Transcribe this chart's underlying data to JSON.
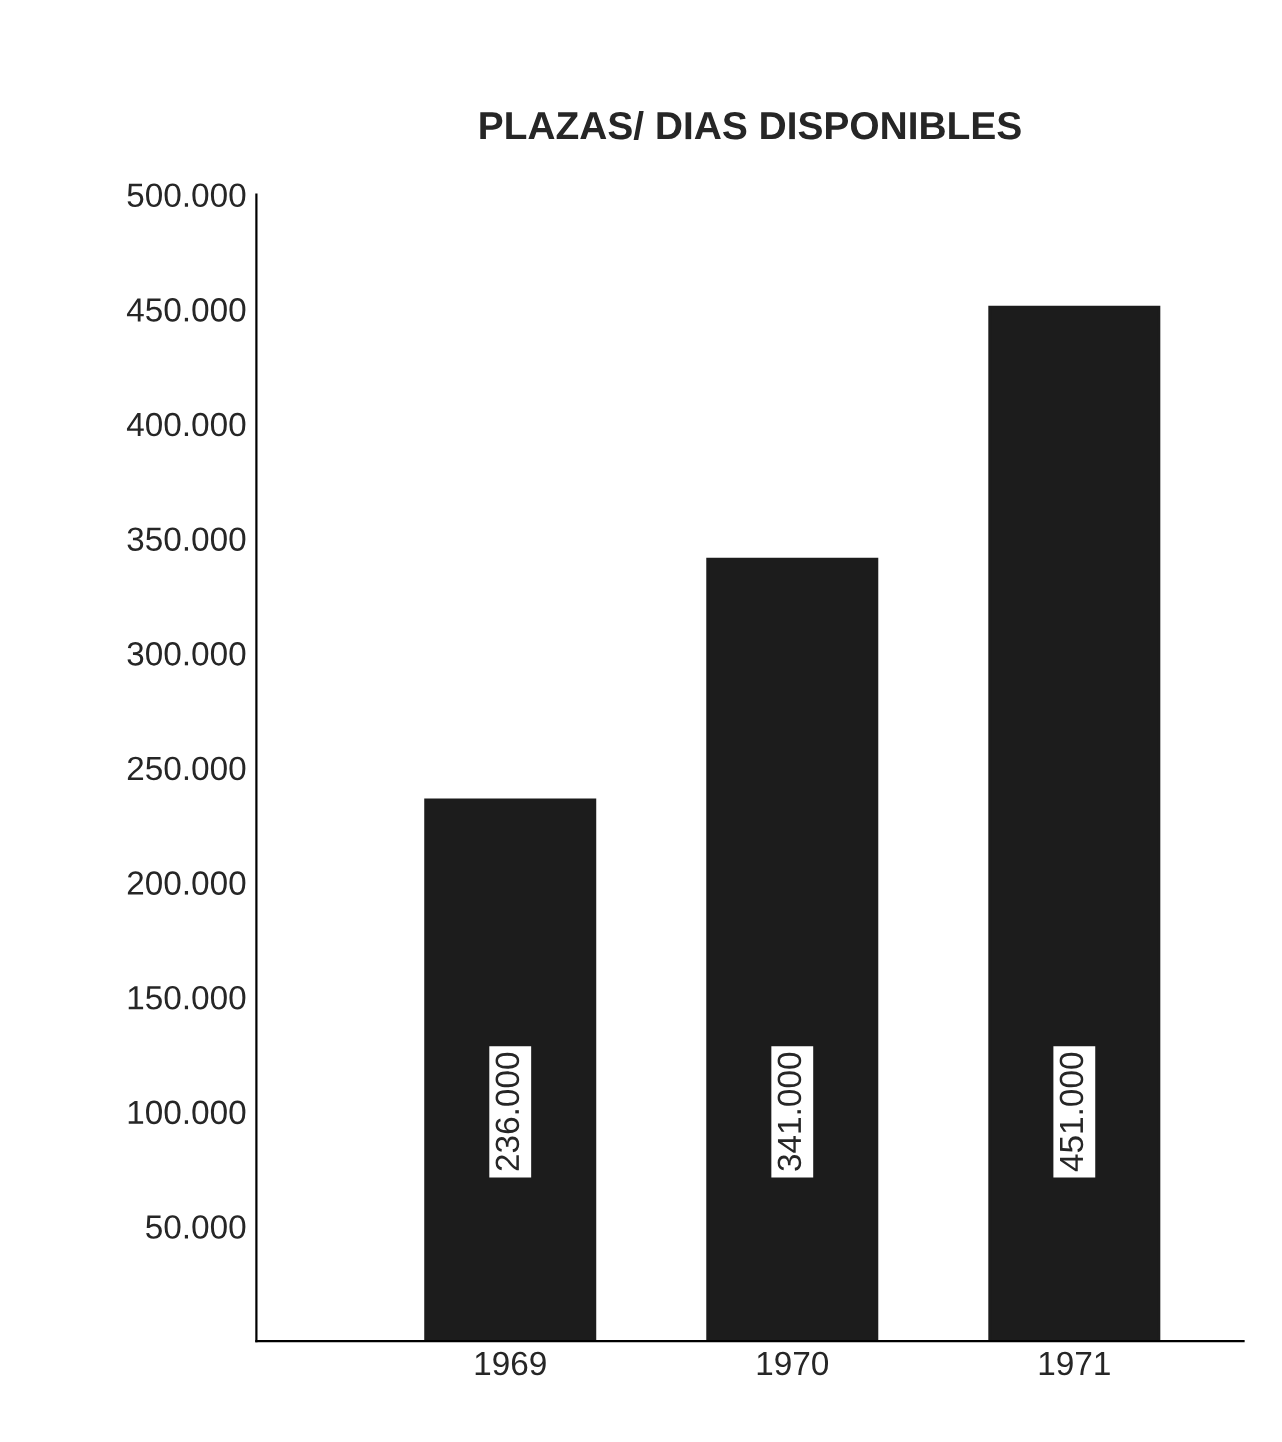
{
  "chart_data": {
    "type": "bar",
    "title": "PLAZAS/ DIAS DISPONIBLES",
    "categories": [
      "1969",
      "1970",
      "1971"
    ],
    "values": [
      236000,
      341000,
      451000
    ],
    "value_labels": [
      "236.000",
      "341.000",
      "451.000"
    ],
    "color": "#1c1c1c",
    "ylim": [
      0,
      500000
    ],
    "yticks": [
      {
        "value": 50000,
        "label": "50.000"
      },
      {
        "value": 100000,
        "label": "100.000"
      },
      {
        "value": 150000,
        "label": "150.000"
      },
      {
        "value": 200000,
        "label": "200.000"
      },
      {
        "value": 250000,
        "label": "250.000"
      },
      {
        "value": 300000,
        "label": "300.000"
      },
      {
        "value": 350000,
        "label": "350.000"
      },
      {
        "value": 400000,
        "label": "400.000"
      },
      {
        "value": 450000,
        "label": "450.000"
      },
      {
        "value": 500000,
        "label": "500.000"
      }
    ],
    "grid": false,
    "legend": false
  }
}
